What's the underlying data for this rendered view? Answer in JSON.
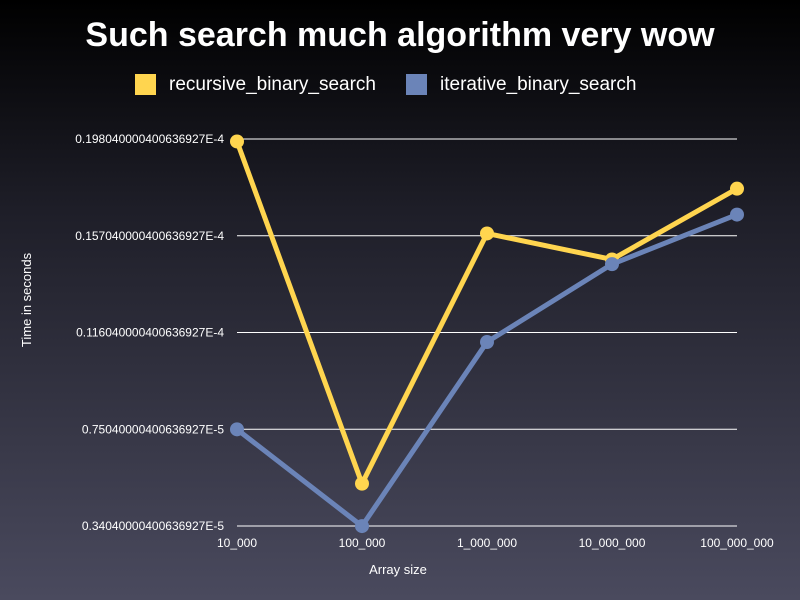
{
  "chart_data": {
    "type": "line",
    "title": "Such search much algorithm very wow",
    "xlabel": "Array size",
    "ylabel": "Time in seconds",
    "categories": [
      "10_000",
      "100_000",
      "1_000_000",
      "10_000_000",
      "100_000_000"
    ],
    "y_ticks": [
      {
        "value": 3.4040000400636927e-06,
        "label": "0.34040000400636927E-5"
      },
      {
        "value": 7.5040000400636924e-06,
        "label": "0.75040000400636927E-5"
      },
      {
        "value": 1.1604000040063692e-05,
        "label": "0.11604000040063692​7E-4"
      },
      {
        "value": 1.5704000040063694e-05,
        "label": "0.15704000040063692​7E-4"
      },
      {
        "value": 1.980400004006369e-05,
        "label": "0.19804000040063692​7E-4"
      }
    ],
    "ylim": [
      3.4040000400636927e-06,
      1.980400004006369e-05
    ],
    "grid": true,
    "legend_position": "top-center",
    "series": [
      {
        "name": "recursive_binary_search",
        "color": "#ffd54f",
        "values": [
          1.97e-05,
          5.2e-06,
          1.58e-05,
          1.47e-05,
          1.77e-05
        ]
      },
      {
        "name": "iterative_binary_search",
        "color": "#6b84b8",
        "values": [
          7.5e-06,
          3.4e-06,
          1.12e-05,
          1.45e-05,
          1.66e-05
        ]
      }
    ]
  }
}
